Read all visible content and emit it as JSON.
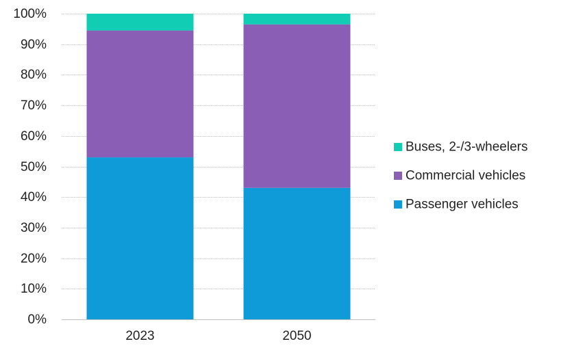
{
  "chart_data": {
    "type": "bar",
    "stacked": true,
    "categories": [
      "2023",
      "2050"
    ],
    "series": [
      {
        "name": "Passenger vehicles",
        "values": [
          53,
          43
        ],
        "color": "#0f9bd7"
      },
      {
        "name": "Commercial vehicles",
        "values": [
          41.5,
          53.5
        ],
        "color": "#8a5eb5"
      },
      {
        "name": "Buses, 2-/3-wheelers",
        "values": [
          5.5,
          3.5
        ],
        "color": "#11cdb3"
      }
    ],
    "title": "",
    "xlabel": "",
    "ylabel": "",
    "ylim": [
      0,
      100
    ],
    "yticks": [
      0,
      10,
      20,
      30,
      40,
      50,
      60,
      70,
      80,
      90,
      100
    ],
    "ytick_labels": [
      "0%",
      "10%",
      "20%",
      "30%",
      "40%",
      "50%",
      "60%",
      "70%",
      "80%",
      "90%",
      "100%"
    ],
    "grid": true,
    "legend_position": "right",
    "legend_order": [
      "Buses, 2-/3-wheelers",
      "Commercial vehicles",
      "Passenger vehicles"
    ]
  }
}
